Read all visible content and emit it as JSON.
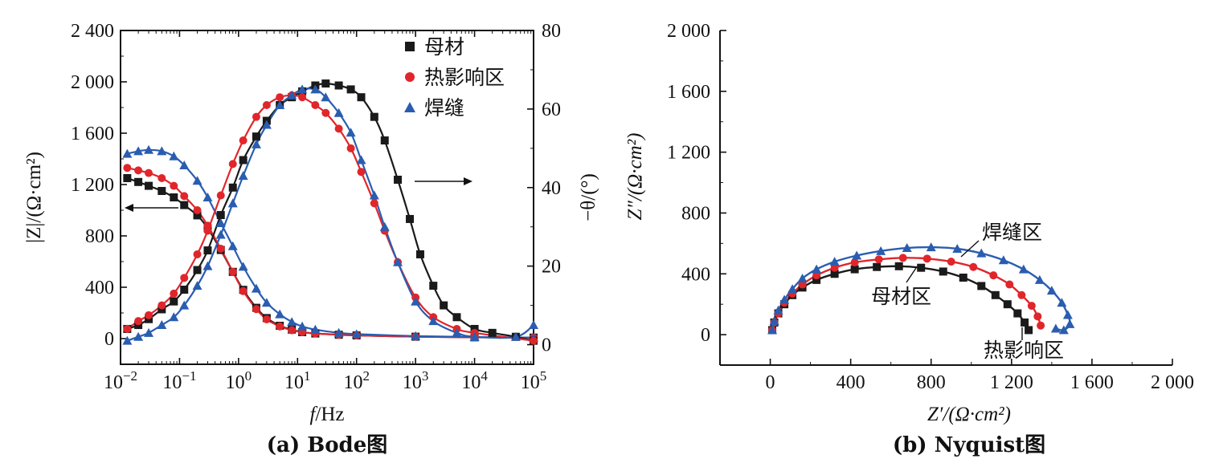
{
  "chart_data": [
    {
      "type": "scatter",
      "panel": "Bode",
      "caption": "(a) Bode图",
      "xlabel": "f/Hz",
      "xscale": "log",
      "xlim": [
        0.01,
        100000
      ],
      "xticks": [
        "10^-2",
        "10^-1",
        "10^0",
        "10^1",
        "10^2",
        "10^3",
        "10^4",
        "10^5"
      ],
      "ylabel_left": "|Z|/(Ω·cm²)",
      "ylim_left": [
        -200,
        2400
      ],
      "yticks_left": [
        "0",
        "400",
        "800",
        "1 200",
        "1 600",
        "2 000",
        "2 400"
      ],
      "ylabel_right": "−θ/(°)",
      "ylim_right": [
        -5,
        80
      ],
      "yticks_right": [
        "0",
        "20",
        "40",
        "60",
        "80"
      ],
      "legend_position": "top-right",
      "arrows": [
        "left arrow marks |Z| curves",
        "right arrow marks −θ curves"
      ],
      "series": [
        {
          "name": "母材",
          "marker": "square",
          "color": "#1a1a1a",
          "axis": "left",
          "x": [
            0.013,
            0.02,
            0.03,
            0.05,
            0.08,
            0.12,
            0.2,
            0.3,
            0.5,
            0.8,
            1.2,
            2,
            3,
            5,
            8,
            12,
            20,
            50,
            100,
            1000,
            10000,
            100000
          ],
          "y": [
            1250,
            1220,
            1190,
            1150,
            1100,
            1040,
            960,
            860,
            690,
            520,
            380,
            240,
            160,
            100,
            70,
            50,
            40,
            30,
            25,
            15,
            10,
            8
          ]
        },
        {
          "name": "热影响区",
          "marker": "circle",
          "color": "#e0262b",
          "axis": "left",
          "x": [
            0.013,
            0.02,
            0.03,
            0.05,
            0.08,
            0.12,
            0.2,
            0.3,
            0.5,
            0.8,
            1.2,
            2,
            3,
            5,
            8,
            12,
            20,
            50,
            100,
            1000,
            10000,
            100000
          ],
          "y": [
            1330,
            1310,
            1290,
            1250,
            1190,
            1110,
            1000,
            880,
            700,
            520,
            370,
            230,
            150,
            95,
            65,
            50,
            40,
            30,
            25,
            15,
            10,
            8
          ]
        },
        {
          "name": "焊缝",
          "marker": "triangle",
          "color": "#2a5db0",
          "axis": "left",
          "x": [
            0.013,
            0.02,
            0.03,
            0.05,
            0.08,
            0.12,
            0.2,
            0.3,
            0.5,
            0.8,
            1.2,
            2,
            3,
            5,
            8,
            12,
            20,
            50,
            100,
            1000,
            10000,
            100000
          ],
          "y": [
            1440,
            1460,
            1470,
            1460,
            1420,
            1350,
            1230,
            1100,
            900,
            720,
            560,
            390,
            280,
            190,
            130,
            95,
            70,
            45,
            35,
            20,
            12,
            8
          ]
        },
        {
          "name": "母材",
          "marker": "square",
          "color": "#1a1a1a",
          "axis": "right",
          "x": [
            0.013,
            0.02,
            0.03,
            0.05,
            0.08,
            0.12,
            0.2,
            0.3,
            0.5,
            0.8,
            1.2,
            2,
            3,
            5,
            8,
            12,
            20,
            30,
            50,
            80,
            120,
            200,
            300,
            500,
            800,
            1200,
            2000,
            3000,
            5000,
            10000,
            20000,
            50000,
            100000
          ],
          "y": [
            4,
            5,
            6.5,
            9,
            11,
            14,
            19,
            24,
            33,
            40,
            47,
            53,
            57,
            61,
            63,
            64.5,
            66,
            66.5,
            66,
            65,
            63,
            58,
            52,
            42,
            32,
            23,
            15,
            10,
            7,
            4,
            3,
            2,
            1
          ]
        },
        {
          "name": "热影响区",
          "marker": "circle",
          "color": "#e0262b",
          "axis": "right",
          "x": [
            0.013,
            0.02,
            0.03,
            0.05,
            0.08,
            0.12,
            0.2,
            0.3,
            0.5,
            0.8,
            1.2,
            2,
            3,
            5,
            8,
            12,
            20,
            30,
            50,
            80,
            120,
            200,
            300,
            500,
            1000,
            2000,
            5000,
            10000,
            100000
          ],
          "y": [
            4,
            6,
            7.5,
            10,
            13,
            17,
            23,
            29,
            38,
            46,
            52,
            58,
            61,
            63,
            63.5,
            63,
            61,
            59,
            55,
            50,
            44,
            36,
            29,
            21,
            12,
            7,
            4,
            3,
            1
          ]
        },
        {
          "name": "焊缝",
          "marker": "triangle",
          "color": "#2a5db0",
          "axis": "right",
          "x": [
            0.013,
            0.02,
            0.03,
            0.05,
            0.08,
            0.12,
            0.2,
            0.3,
            0.5,
            0.8,
            1.2,
            2,
            3,
            5,
            8,
            12,
            20,
            30,
            50,
            80,
            120,
            200,
            300,
            500,
            1000,
            2000,
            5000,
            10000,
            50000,
            100000
          ],
          "y": [
            1,
            2,
            3,
            5,
            7,
            10,
            15,
            20,
            28,
            36,
            43,
            51,
            56,
            61,
            63.5,
            65,
            65,
            63,
            59,
            54,
            47,
            38,
            30,
            21,
            11,
            6,
            3,
            2,
            2,
            5
          ]
        }
      ]
    },
    {
      "type": "scatter",
      "panel": "Nyquist",
      "caption": "(b) Nyquist图",
      "xlabel": "Z′/(Ω·cm²)",
      "ylabel": "Z″/(Ω·cm²)",
      "xlim": [
        -250,
        2000
      ],
      "ylim": [
        -200,
        2000
      ],
      "xticks": [
        "0",
        "400",
        "800",
        "1 200",
        "1 600",
        "2 000"
      ],
      "yticks": [
        "0",
        "400",
        "800",
        "1 200",
        "1 600",
        "2 000"
      ],
      "annotations": [
        "母材区",
        "热影响区",
        "焊缝区"
      ],
      "series": [
        {
          "name": "母材区",
          "marker": "square",
          "color": "#1a1a1a",
          "x": [
            10,
            20,
            40,
            70,
            110,
            160,
            230,
            320,
            420,
            530,
            640,
            750,
            860,
            960,
            1050,
            1120,
            1180,
            1230,
            1265,
            1285
          ],
          "y": [
            30,
            80,
            140,
            200,
            260,
            310,
            360,
            400,
            430,
            445,
            450,
            440,
            415,
            375,
            320,
            260,
            200,
            140,
            80,
            30
          ]
        },
        {
          "name": "热影响区",
          "marker": "circle",
          "color": "#e0262b",
          "x": [
            10,
            20,
            40,
            70,
            110,
            160,
            230,
            320,
            420,
            540,
            660,
            780,
            900,
            1010,
            1110,
            1190,
            1250,
            1300,
            1330,
            1345
          ],
          "y": [
            30,
            80,
            140,
            210,
            270,
            330,
            390,
            440,
            475,
            495,
            505,
            500,
            480,
            445,
            390,
            330,
            260,
            190,
            120,
            60
          ]
        },
        {
          "name": "焊缝区",
          "marker": "triangle",
          "color": "#2a5db0",
          "x": [
            10,
            20,
            40,
            70,
            110,
            160,
            230,
            320,
            430,
            550,
            680,
            800,
            930,
            1050,
            1160,
            1260,
            1340,
            1400,
            1450,
            1480,
            1490,
            1460,
            1420
          ],
          "y": [
            30,
            90,
            160,
            230,
            300,
            370,
            430,
            480,
            520,
            550,
            570,
            575,
            565,
            535,
            490,
            430,
            360,
            290,
            210,
            130,
            70,
            30,
            40
          ]
        }
      ]
    }
  ]
}
